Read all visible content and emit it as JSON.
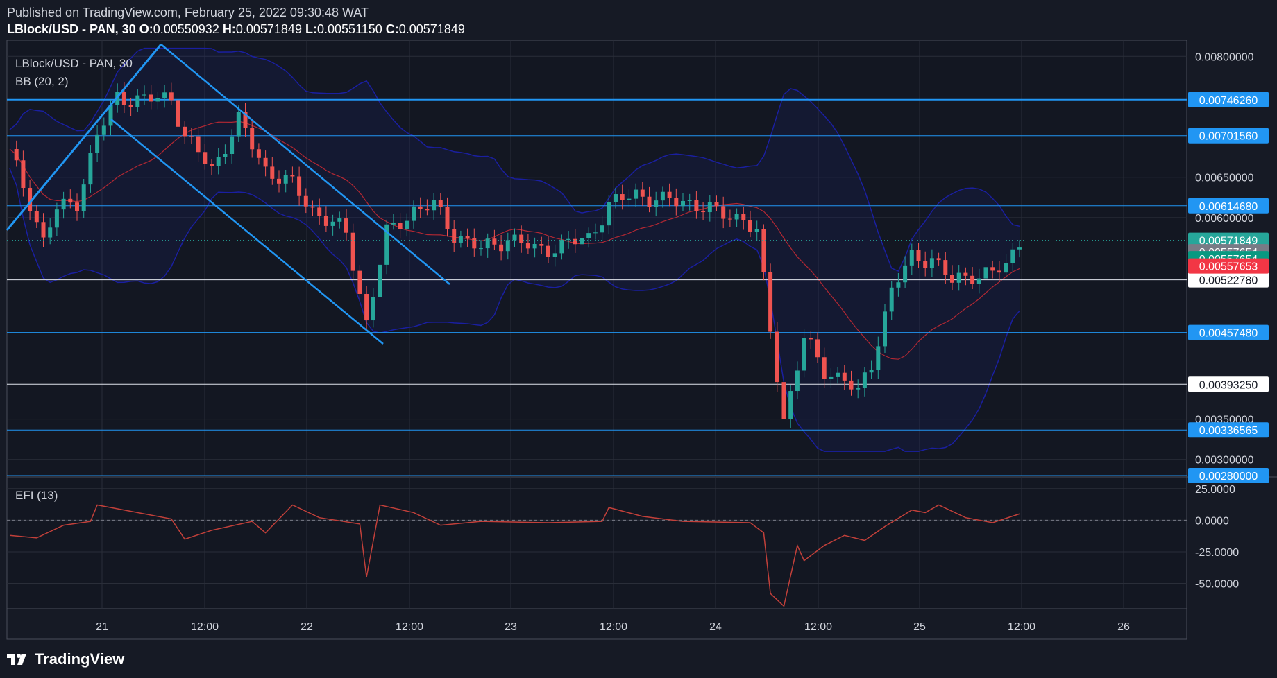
{
  "header": {
    "published": "Published on TradingView.com, February 25, 2022 09:30:48 WAT",
    "symbol": "LBlock/USD - PAN, 30",
    "o_label": "O:",
    "o": "0.00550932",
    "h_label": "H:",
    "h": "0.00571849",
    "l_label": "L:",
    "l": "0.00551150",
    "c_label": "C:",
    "c": "0.00571849"
  },
  "footer": {
    "brand": "TradingView"
  },
  "colors": {
    "background": "#161a25",
    "grid": "#2a2e39",
    "up": "#26a69a",
    "down": "#ef5350",
    "bb_band": "#1a1fa0",
    "bb_basis": "#b22833",
    "trendline": "#2196f3",
    "efi": "#c2403a"
  },
  "chart_data": [
    {
      "type": "candlestick",
      "title": "LBlock/USD - PAN, 30",
      "indicator": "BB (20, 2)",
      "x_tick_labels": [
        "21",
        "12:00",
        "22",
        "12:00",
        "23",
        "12:00",
        "24",
        "12:00",
        "25",
        "12:00",
        "26"
      ],
      "y_tick_labels": [
        "0.00800000",
        "0.00650000",
        "0.00600000",
        "0.00350000",
        "0.00300000"
      ],
      "ylim": [
        0.0028,
        0.0082
      ],
      "grid": true,
      "ohlc_last": {
        "open": 0.00550932,
        "high": 0.00571849,
        "low": 0.0055115,
        "close": 0.00571849
      },
      "close_path": [
        [
          0,
          0.0068
        ],
        [
          3,
          0.0062
        ],
        [
          5,
          0.0057
        ],
        [
          7,
          0.0061
        ],
        [
          10,
          0.0062
        ],
        [
          13,
          0.007
        ],
        [
          16,
          0.0075
        ],
        [
          20,
          0.00745
        ],
        [
          24,
          0.0075
        ],
        [
          26,
          0.007
        ],
        [
          30,
          0.0066
        ],
        [
          34,
          0.0072
        ],
        [
          38,
          0.0066
        ],
        [
          42,
          0.0064
        ],
        [
          45,
          0.0061
        ],
        [
          50,
          0.0058
        ],
        [
          53,
          0.0047
        ],
        [
          56,
          0.0058
        ],
        [
          60,
          0.0061
        ],
        [
          63,
          0.00615
        ],
        [
          66,
          0.0058
        ],
        [
          70,
          0.0056
        ],
        [
          74,
          0.00575
        ],
        [
          78,
          0.0056
        ],
        [
          82,
          0.00565
        ],
        [
          86,
          0.00575
        ],
        [
          89,
          0.00615
        ],
        [
          93,
          0.0063
        ],
        [
          97,
          0.0062
        ],
        [
          101,
          0.0062
        ],
        [
          105,
          0.00605
        ],
        [
          109,
          0.006
        ],
        [
          111,
          0.0058
        ],
        [
          113,
          0.0046
        ],
        [
          115,
          0.0035
        ],
        [
          118,
          0.0045
        ],
        [
          121,
          0.0041
        ],
        [
          124,
          0.004
        ],
        [
          126,
          0.0038
        ],
        [
          128,
          0.0042
        ],
        [
          131,
          0.0051
        ],
        [
          134,
          0.0055
        ],
        [
          137,
          0.0055
        ],
        [
          140,
          0.0052
        ],
        [
          143,
          0.0053
        ],
        [
          146,
          0.0053
        ],
        [
          148,
          0.0054
        ],
        [
          150,
          0.00571849
        ]
      ],
      "horizontal_levels": [
        {
          "value": 0.0074626,
          "label": "0.00746260",
          "style": "blue"
        },
        {
          "value": 0.0070156,
          "label": "0.00701560",
          "style": "blue"
        },
        {
          "value": 0.0061468,
          "label": "0.00614680",
          "style": "blue"
        },
        {
          "value": 0.0052278,
          "label": "0.00522780",
          "style": "white"
        },
        {
          "value": 0.0045748,
          "label": "0.00457480",
          "style": "blue"
        },
        {
          "value": 0.0039325,
          "label": "0.00393250",
          "style": "white"
        },
        {
          "value": 0.00336565,
          "label": "0.00336565",
          "style": "blue"
        },
        {
          "value": 0.0028,
          "label": "0.00280000",
          "style": "blue"
        }
      ],
      "price_tags": [
        {
          "value": 0.00571849,
          "label": "0.00571849",
          "color": "#26a69a"
        },
        {
          "value": 0.00557654,
          "label": "0.00557654",
          "color": "#787b86"
        },
        {
          "value": 0.00549,
          "label": "0.00557654",
          "color": "#089981"
        },
        {
          "value": 0.0054,
          "label": "0.00557653",
          "color": "#f23645"
        }
      ]
    },
    {
      "type": "line",
      "title": "EFI (13)",
      "y_tick_labels": [
        "25.0000",
        "0.0000",
        "-25.0000",
        "-50.0000"
      ],
      "ylim": [
        -70,
        32
      ],
      "zero_line": true,
      "values": [
        [
          0,
          -12
        ],
        [
          4,
          -14
        ],
        [
          8,
          -4
        ],
        [
          12,
          -1
        ],
        [
          13,
          12
        ],
        [
          17,
          8
        ],
        [
          24,
          1
        ],
        [
          26,
          -15
        ],
        [
          30,
          -8
        ],
        [
          36,
          -1
        ],
        [
          38,
          -10
        ],
        [
          42,
          12
        ],
        [
          46,
          2
        ],
        [
          52,
          -3
        ],
        [
          53,
          -45
        ],
        [
          55,
          12
        ],
        [
          60,
          6
        ],
        [
          64,
          -4
        ],
        [
          70,
          -1
        ],
        [
          80,
          -2
        ],
        [
          88,
          -1
        ],
        [
          89,
          10
        ],
        [
          94,
          3
        ],
        [
          100,
          -1
        ],
        [
          110,
          -2
        ],
        [
          112,
          -10
        ],
        [
          113,
          -58
        ],
        [
          115,
          -68
        ],
        [
          117,
          -20
        ],
        [
          118,
          -32
        ],
        [
          121,
          -20
        ],
        [
          124,
          -12
        ],
        [
          127,
          -16
        ],
        [
          130,
          -5
        ],
        [
          134,
          8
        ],
        [
          136,
          6
        ],
        [
          138,
          12
        ],
        [
          142,
          2
        ],
        [
          146,
          -2
        ],
        [
          150,
          5
        ]
      ]
    }
  ]
}
